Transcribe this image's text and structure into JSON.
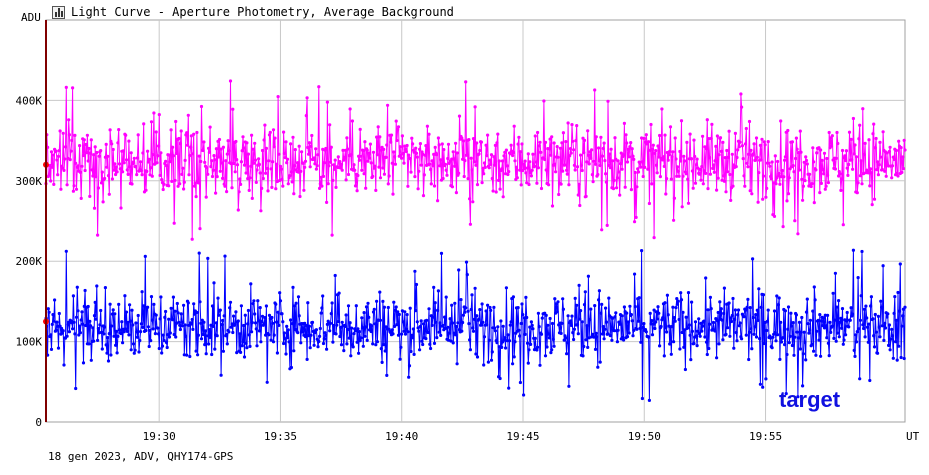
{
  "window": {
    "title": "Light Curve - Aperture Photometry, Average Background",
    "title_icon": "light-curve-app-icon",
    "footer": "18 gen 2023, ADV, QHY174-GPS"
  },
  "chart_data": {
    "type": "line",
    "title": "Light Curve - Aperture Photometry, Average Background",
    "ylabel": "ADU",
    "xlabel": "UT",
    "ylim": [
      0,
      500000
    ],
    "xlim": [
      "19:25:20",
      "19:60:45"
    ],
    "x_ticks": [
      "19:30",
      "19:35",
      "19:40",
      "19:45",
      "19:50",
      "19:55"
    ],
    "y_ticks": [
      {
        "value": 0,
        "label": "0"
      },
      {
        "value": 100000,
        "label": "100K"
      },
      {
        "value": 200000,
        "label": "200K"
      },
      {
        "value": 300000,
        "label": "300K"
      },
      {
        "value": 400000,
        "label": "400K"
      }
    ],
    "grid": true,
    "legend": {
      "placement": "bottom-right",
      "entries": [
        "target"
      ]
    },
    "series": [
      {
        "name": "",
        "color": "#ff00ff",
        "role": "comparison",
        "x_start": "19:25:20",
        "x_end": "19:60:45",
        "points": 1100,
        "mean": 325000,
        "spread": 40000,
        "min": 210000,
        "max": 430000
      },
      {
        "name": "target",
        "color": "#0000ff",
        "x_start": "19:25:20",
        "x_end": "19:60:45",
        "points": 1100,
        "mean": 120000,
        "spread": 38000,
        "min": 25000,
        "max": 215000
      }
    ],
    "cursor": {
      "x": "19:25:20",
      "color": "#ff0000",
      "markers": [
        320000,
        125000
      ]
    }
  }
}
